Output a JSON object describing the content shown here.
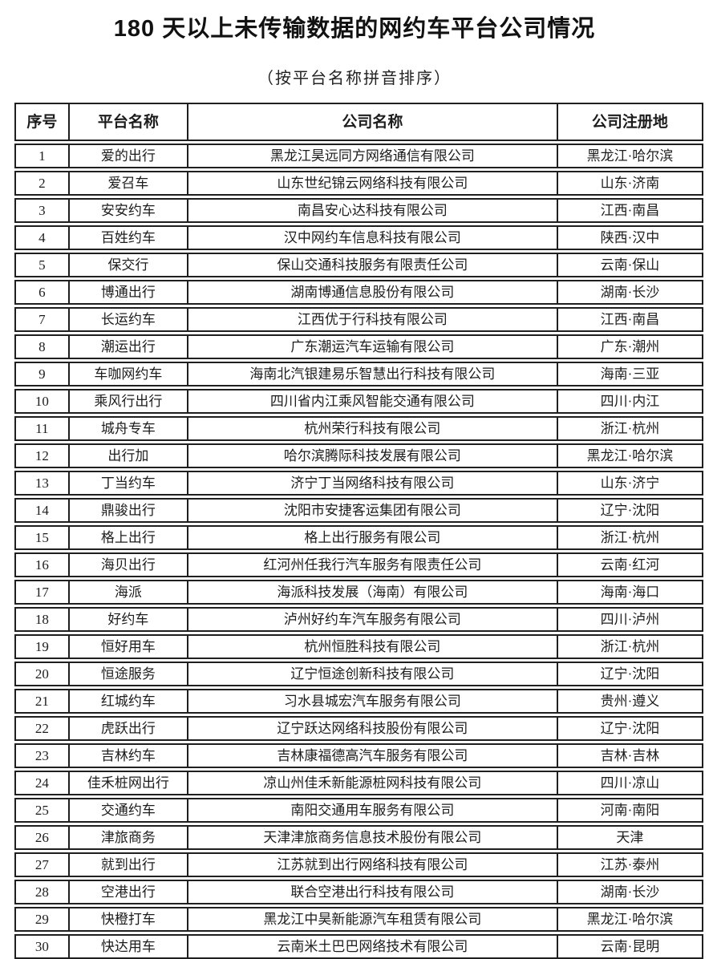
{
  "title": "180 天以上未传输数据的网约车平台公司情况",
  "subtitle": "（按平台名称拼音排序）",
  "table": {
    "columns": [
      "序号",
      "平台名称",
      "公司名称",
      "公司注册地"
    ],
    "rows": [
      [
        "1",
        "爱的出行",
        "黑龙江昊远同方网络通信有限公司",
        "黑龙江·哈尔滨"
      ],
      [
        "2",
        "爱召车",
        "山东世纪锦云网络科技有限公司",
        "山东·济南"
      ],
      [
        "3",
        "安安约车",
        "南昌安心达科技有限公司",
        "江西·南昌"
      ],
      [
        "4",
        "百姓约车",
        "汉中网约车信息科技有限公司",
        "陕西·汉中"
      ],
      [
        "5",
        "保交行",
        "保山交通科技服务有限责任公司",
        "云南·保山"
      ],
      [
        "6",
        "博通出行",
        "湖南博通信息股份有限公司",
        "湖南·长沙"
      ],
      [
        "7",
        "长运约车",
        "江西优于行科技有限公司",
        "江西·南昌"
      ],
      [
        "8",
        "潮运出行",
        "广东潮运汽车运输有限公司",
        "广东·潮州"
      ],
      [
        "9",
        "车咖网约车",
        "海南北汽银建易乐智慧出行科技有限公司",
        "海南·三亚"
      ],
      [
        "10",
        "乘风行出行",
        "四川省内江乘风智能交通有限公司",
        "四川·内江"
      ],
      [
        "11",
        "城舟专车",
        "杭州荣行科技有限公司",
        "浙江·杭州"
      ],
      [
        "12",
        "出行加",
        "哈尔滨腾际科技发展有限公司",
        "黑龙江·哈尔滨"
      ],
      [
        "13",
        "丁当约车",
        "济宁丁当网络科技有限公司",
        "山东·济宁"
      ],
      [
        "14",
        "鼎骏出行",
        "沈阳市安捷客运集团有限公司",
        "辽宁·沈阳"
      ],
      [
        "15",
        "格上出行",
        "格上出行服务有限公司",
        "浙江·杭州"
      ],
      [
        "16",
        "海贝出行",
        "红河州任我行汽车服务有限责任公司",
        "云南·红河"
      ],
      [
        "17",
        "海派",
        "海派科技发展（海南）有限公司",
        "海南·海口"
      ],
      [
        "18",
        "好约车",
        "泸州好约车汽车服务有限公司",
        "四川·泸州"
      ],
      [
        "19",
        "恒好用车",
        "杭州恒胜科技有限公司",
        "浙江·杭州"
      ],
      [
        "20",
        "恒途服务",
        "辽宁恒途创新科技有限公司",
        "辽宁·沈阳"
      ],
      [
        "21",
        "红城约车",
        "习水县城宏汽车服务有限公司",
        "贵州·遵义"
      ],
      [
        "22",
        "虎跃出行",
        "辽宁跃达网络科技股份有限公司",
        "辽宁·沈阳"
      ],
      [
        "23",
        "吉林约车",
        "吉林康福德高汽车服务有限公司",
        "吉林·吉林"
      ],
      [
        "24",
        "佳禾桩网出行",
        "凉山州佳禾新能源桩网科技有限公司",
        "四川·凉山"
      ],
      [
        "25",
        "交通约车",
        "南阳交通用车服务有限公司",
        "河南·南阳"
      ],
      [
        "26",
        "津旅商务",
        "天津津旅商务信息技术股份有限公司",
        "天津"
      ],
      [
        "27",
        "就到出行",
        "江苏就到出行网络科技有限公司",
        "江苏·泰州"
      ],
      [
        "28",
        "空港出行",
        "联合空港出行科技有限公司",
        "湖南·长沙"
      ],
      [
        "29",
        "快橙打车",
        "黑龙江中昊新能源汽车租赁有限公司",
        "黑龙江·哈尔滨"
      ],
      [
        "30",
        "快达用车",
        "云南米土巴巴网络技术有限公司",
        "云南·昆明"
      ]
    ]
  }
}
